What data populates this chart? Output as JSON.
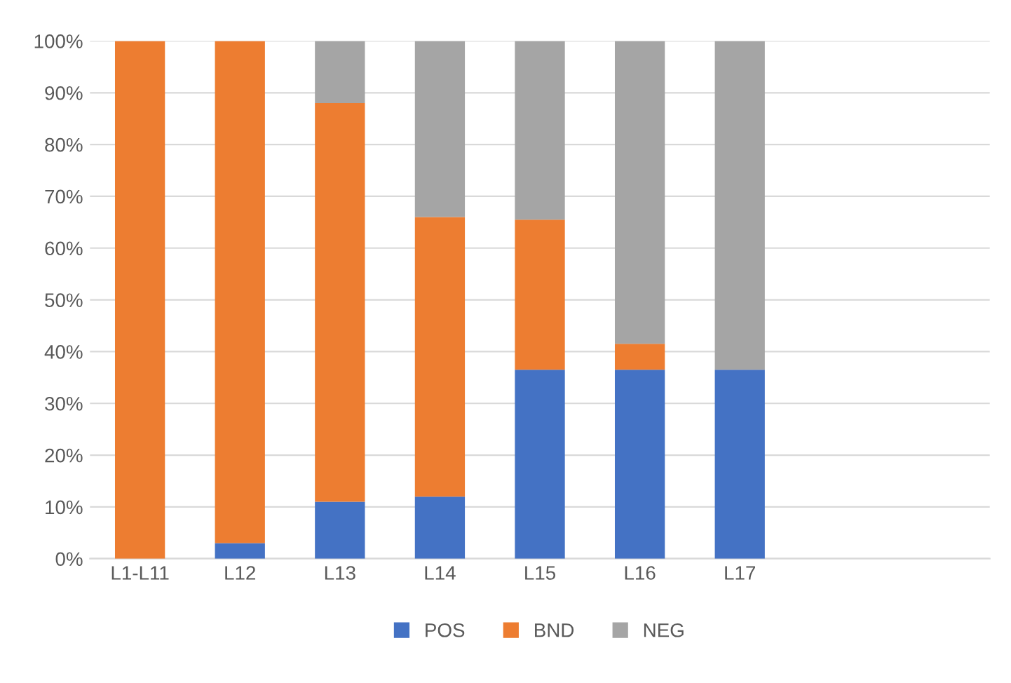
{
  "chart_data": {
    "type": "bar",
    "stacked": true,
    "categories": [
      "L1-L11",
      "L12",
      "L13",
      "L14",
      "L15",
      "L16",
      "L17",
      null,
      null
    ],
    "series": [
      {
        "name": "POS",
        "color": "#4472c4",
        "values": [
          0,
          3,
          11,
          12,
          36.5,
          36.5,
          36.5,
          null,
          null
        ]
      },
      {
        "name": "BND",
        "color": "#ed7d31",
        "values": [
          100,
          97,
          77,
          54,
          29,
          5,
          0,
          null,
          null
        ]
      },
      {
        "name": "NEG",
        "color": "#a5a5a5",
        "values": [
          0,
          0,
          12,
          34,
          34.5,
          58.5,
          63.5,
          null,
          null
        ]
      }
    ],
    "ylim": [
      0,
      100
    ],
    "yticks": [
      {
        "value": 0,
        "label": "0%"
      },
      {
        "value": 10,
        "label": "10%"
      },
      {
        "value": 20,
        "label": "20%"
      },
      {
        "value": 30,
        "label": "30%"
      },
      {
        "value": 40,
        "label": "40%"
      },
      {
        "value": 50,
        "label": "50%"
      },
      {
        "value": 60,
        "label": "60%"
      },
      {
        "value": 70,
        "label": "70%"
      },
      {
        "value": 80,
        "label": "80%"
      },
      {
        "value": 90,
        "label": "90%"
      },
      {
        "value": 100,
        "label": "100%"
      }
    ],
    "grid": "y",
    "legend": "bottom"
  }
}
